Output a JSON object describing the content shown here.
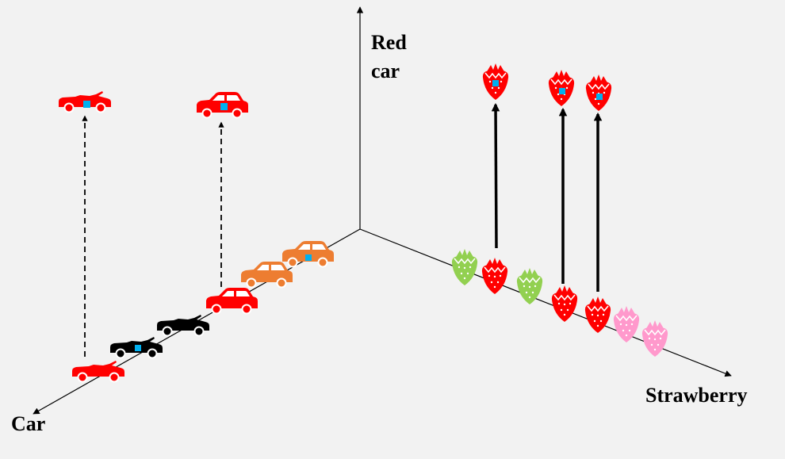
{
  "axes": {
    "vertical_label_line1": "Red",
    "vertical_label_line2": "car",
    "left_label": "Car",
    "right_label": "Strawberry"
  },
  "colors": {
    "background": "#f2f2f2",
    "red": "#ff0000",
    "orange": "#ed7d31",
    "black": "#000000",
    "green": "#92d050",
    "pink": "#ff99cc",
    "marker": "#00b0f0"
  },
  "icons": {
    "car": "car-icon",
    "convertible": "convertible-car-icon",
    "strawberry": "strawberry-icon",
    "marker": "blue-square-marker"
  }
}
